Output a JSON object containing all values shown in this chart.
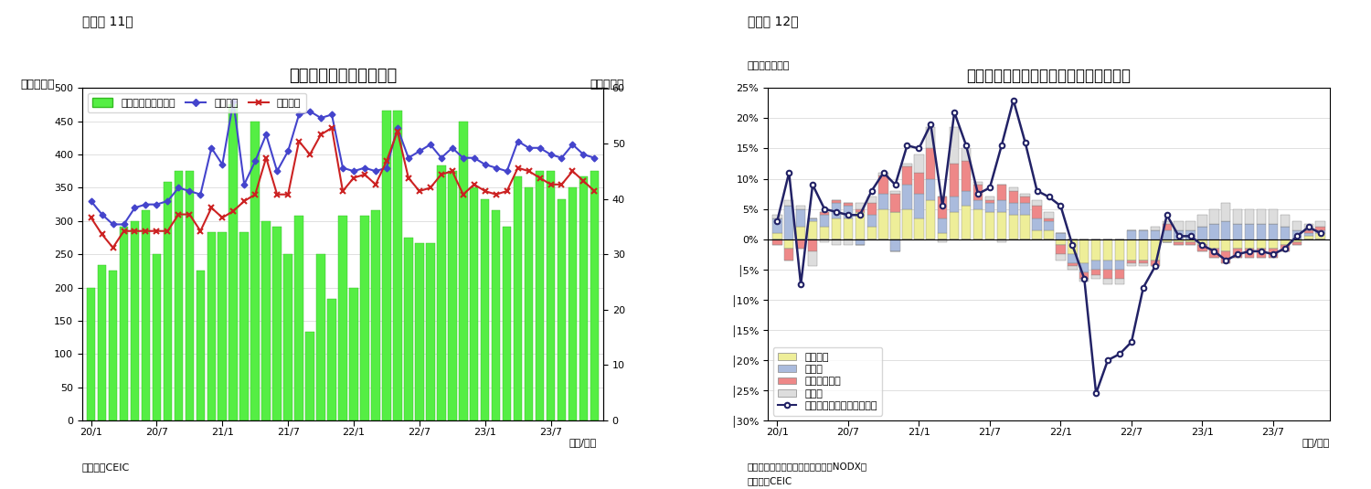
{
  "fig11": {
    "title": "シンガポール　貿易収支",
    "subtitle": "（図表 11）",
    "ylabel_left": "（億ドル）",
    "ylabel_right": "（億ドル）",
    "xlabel": "（年/月）",
    "source": "（資料）CEIC",
    "legend_bar": "貿易収支（右目盛）",
    "legend_line1": "総輸出額",
    "legend_line2": "総輸入額",
    "x_labels": [
      "20/1",
      "20/7",
      "21/1",
      "21/7",
      "22/1",
      "22/7",
      "23/1",
      "23/7"
    ],
    "bar_color": "#55EE44",
    "bar_edge_color": "#33BB22",
    "line1_color": "#4444CC",
    "line2_color": "#CC2222",
    "ylim_left": [
      0,
      500
    ],
    "ylim_right": [
      0,
      60
    ],
    "yticks_left": [
      0,
      50,
      100,
      150,
      200,
      250,
      300,
      350,
      400,
      450,
      500
    ],
    "yticks_right": [
      0,
      10,
      20,
      30,
      40,
      50,
      60
    ],
    "n_months": 47,
    "trade_balance_right": [
      24,
      28,
      27,
      35,
      36,
      38,
      30,
      43,
      45,
      45,
      27,
      34,
      34,
      57,
      34,
      54,
      36,
      35,
      30,
      37,
      16,
      30,
      22,
      37,
      24,
      37,
      38,
      56,
      56,
      33,
      32,
      32,
      46,
      45,
      54,
      42,
      40,
      38,
      35,
      44,
      42,
      45,
      45,
      40,
      42,
      44,
      45
    ],
    "exports": [
      330,
      310,
      295,
      295,
      320,
      325,
      325,
      330,
      350,
      345,
      340,
      410,
      385,
      480,
      355,
      390,
      430,
      375,
      405,
      460,
      465,
      455,
      460,
      380,
      375,
      380,
      375,
      380,
      440,
      395,
      405,
      415,
      395,
      410,
      395,
      395,
      385,
      380,
      375,
      420,
      410,
      410,
      400,
      395,
      415,
      400,
      395
    ],
    "imports": [
      305,
      280,
      260,
      285,
      285,
      285,
      285,
      285,
      310,
      310,
      285,
      320,
      305,
      315,
      330,
      340,
      395,
      340,
      340,
      420,
      400,
      430,
      440,
      345,
      365,
      370,
      355,
      390,
      435,
      365,
      345,
      350,
      370,
      375,
      340,
      355,
      345,
      340,
      345,
      380,
      375,
      365,
      355,
      355,
      375,
      360,
      345
    ]
  },
  "fig12": {
    "title": "シンガポール　輸出の伸び率（品目別）",
    "subtitle": "（図表 12）",
    "ylabel_left": "（前年同期比）",
    "xlabel": "（年/月）",
    "source1": "（注）輸出額は非石油地場輸出（NODX）",
    "source2": "（資料）CEIC",
    "legend_electronics": "電子製品",
    "legend_pharma": "医薬品",
    "legend_petrochem": "石油化学製品",
    "legend_other": "その他",
    "legend_line": "非石油輸出（再輸出除く）",
    "x_labels": [
      "20/1",
      "20/7",
      "21/1",
      "21/7",
      "22/1",
      "22/7",
      "23/1",
      "23/7"
    ],
    "ylim": [
      -0.3,
      0.25
    ],
    "ytick_vals": [
      0.25,
      0.2,
      0.15,
      0.1,
      0.05,
      0.0,
      -0.05,
      -0.1,
      -0.15,
      -0.2,
      -0.25,
      -0.3
    ],
    "ytick_labels": [
      "25%",
      "20%",
      "15%",
      "10%",
      "5%",
      "0%",
      "│5%",
      "│10%",
      "│15%",
      "│20%",
      "│25%",
      "│30%"
    ],
    "color_electronics": "#EEEE99",
    "color_pharma": "#AABBDD",
    "color_petrochem": "#EE8888",
    "color_other": "#DDDDDD",
    "color_line": "#222266",
    "electronics": [
      1.0,
      -1.5,
      2.0,
      3.0,
      2.0,
      3.5,
      3.5,
      4.5,
      2.0,
      5.0,
      4.5,
      5.0,
      3.5,
      6.5,
      1.0,
      4.5,
      5.5,
      5.0,
      4.5,
      4.5,
      4.0,
      4.0,
      1.5,
      1.5,
      -1.0,
      -2.5,
      -4.0,
      -3.5,
      -3.5,
      -3.5,
      -3.5,
      -3.5,
      -3.5,
      -0.5,
      -0.5,
      -0.5,
      -1.0,
      -1.5,
      -2.0,
      -1.5,
      -1.5,
      -1.5,
      -1.5,
      -1.0,
      -0.5,
      0.5,
      1.0
    ],
    "pharma": [
      2.5,
      5.5,
      3.0,
      0.5,
      2.0,
      2.5,
      2.0,
      -1.0,
      2.0,
      2.5,
      -2.0,
      4.0,
      4.0,
      3.5,
      2.5,
      2.5,
      2.5,
      1.5,
      1.5,
      2.0,
      2.0,
      2.0,
      2.0,
      1.5,
      1.0,
      -1.5,
      -1.5,
      -1.5,
      -1.5,
      -1.5,
      1.5,
      1.5,
      1.5,
      1.5,
      1.5,
      1.5,
      2.0,
      2.5,
      3.0,
      2.5,
      2.5,
      2.5,
      2.5,
      2.0,
      1.5,
      0.5,
      0.5
    ],
    "petrochem": [
      -1.0,
      -2.0,
      -1.5,
      -2.0,
      0.5,
      0.5,
      0.5,
      0.5,
      2.0,
      3.0,
      3.0,
      3.0,
      3.5,
      5.0,
      3.5,
      5.5,
      5.0,
      2.5,
      0.5,
      2.5,
      2.0,
      1.0,
      2.0,
      0.5,
      -1.5,
      -0.5,
      -1.0,
      -1.0,
      -1.5,
      -1.5,
      -0.5,
      -0.5,
      -1.0,
      1.0,
      -0.5,
      -0.5,
      -1.0,
      -1.5,
      -2.0,
      -1.5,
      -1.5,
      -1.5,
      -1.5,
      -1.0,
      -0.5,
      0.5,
      0.5
    ],
    "other": [
      0.5,
      1.0,
      0.5,
      -2.5,
      -0.5,
      -1.0,
      -1.0,
      1.0,
      1.0,
      0.5,
      0.5,
      0.5,
      3.0,
      3.5,
      -0.5,
      6.0,
      2.0,
      0.5,
      0.5,
      -0.5,
      0.5,
      0.5,
      1.0,
      1.0,
      -1.0,
      -0.5,
      -0.5,
      -0.5,
      -1.0,
      -1.0,
      -0.5,
      -0.5,
      0.5,
      0.5,
      1.5,
      1.5,
      2.0,
      2.5,
      3.0,
      2.5,
      2.5,
      2.5,
      2.5,
      2.0,
      1.5,
      1.0,
      1.0
    ],
    "nodx_line": [
      3.0,
      11.0,
      -7.5,
      9.0,
      5.0,
      4.5,
      4.0,
      4.0,
      8.0,
      11.0,
      9.0,
      15.5,
      15.0,
      19.0,
      5.5,
      21.0,
      15.5,
      7.5,
      8.5,
      15.5,
      23.0,
      16.0,
      8.0,
      7.0,
      5.5,
      -1.0,
      -6.5,
      -25.5,
      -20.0,
      -19.0,
      -17.0,
      -8.0,
      -4.5,
      4.0,
      0.5,
      0.5,
      -1.0,
      -2.0,
      -3.5,
      -2.5,
      -2.0,
      -2.0,
      -2.5,
      -1.5,
      0.5,
      2.0,
      1.0
    ]
  }
}
